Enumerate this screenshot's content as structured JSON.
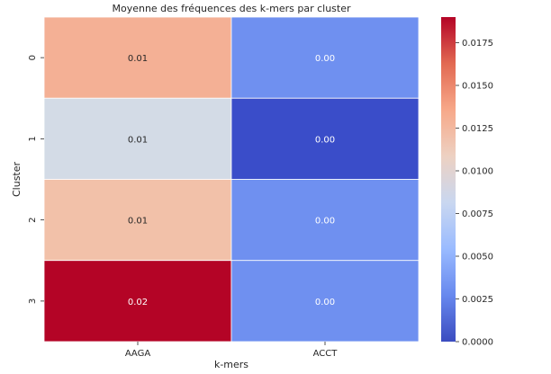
{
  "chart_data": {
    "type": "heatmap",
    "title": "Moyenne des fréquences des k-mers par cluster",
    "xlabel": "k-mers",
    "ylabel": "Cluster",
    "x_categories": [
      "AAGA",
      "ACCT"
    ],
    "y_categories": [
      "0",
      "1",
      "2",
      "3"
    ],
    "cells": [
      {
        "row": 0,
        "col": 0,
        "value": 0.0122,
        "label": "0.01",
        "color": "#f4b095"
      },
      {
        "row": 0,
        "col": 1,
        "value": 0.0021,
        "label": "0.00",
        "color": "#6f90f0"
      },
      {
        "row": 1,
        "col": 0,
        "value": 0.0102,
        "label": "0.01",
        "color": "#d3dbe6"
      },
      {
        "row": 1,
        "col": 1,
        "value": 0.0,
        "label": "0.00",
        "color": "#3a4dc9"
      },
      {
        "row": 2,
        "col": 0,
        "value": 0.012,
        "label": "0.01",
        "color": "#f2c1a9"
      },
      {
        "row": 2,
        "col": 1,
        "value": 0.0021,
        "label": "0.00",
        "color": "#6f90f0"
      },
      {
        "row": 3,
        "col": 0,
        "value": 0.019,
        "label": "0.02",
        "color": "#b40426"
      },
      {
        "row": 3,
        "col": 1,
        "value": 0.0021,
        "label": "0.00",
        "color": "#6f90f0"
      }
    ],
    "colorbar": {
      "colormap": "coolwarm",
      "range": [
        0.0,
        0.019
      ],
      "ticks": [
        0.0,
        0.0025,
        0.005,
        0.0075,
        0.01,
        0.0125,
        0.015,
        0.0175
      ],
      "tick_labels": [
        "0.0000",
        "0.0025",
        "0.0050",
        "0.0075",
        "0.0100",
        "0.0125",
        "0.0150",
        "0.0175"
      ],
      "stops": [
        "#3b4cc0",
        "#6788ee",
        "#9abbff",
        "#c9d7f0",
        "#edd1c2",
        "#f7a889",
        "#e26952",
        "#b40426"
      ]
    },
    "grid": false
  }
}
